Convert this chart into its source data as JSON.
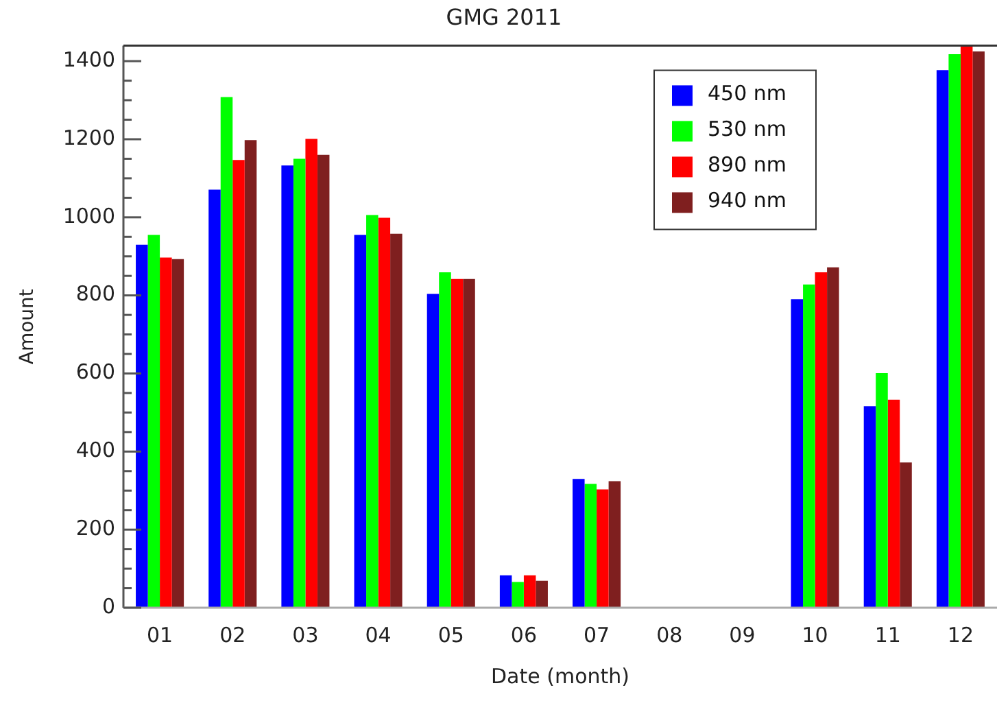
{
  "chart_data": {
    "type": "bar",
    "title": "GMG 2011",
    "xlabel": "Date (month)",
    "ylabel": "Amount",
    "categories": [
      "01",
      "02",
      "03",
      "04",
      "05",
      "06",
      "07",
      "08",
      "09",
      "10",
      "11",
      "12"
    ],
    "series": [
      {
        "name": "450 nm",
        "color": "#0000ff",
        "values": [
          930,
          1071,
          1133,
          955,
          804,
          83,
          330,
          0,
          0,
          790,
          516,
          1377
        ]
      },
      {
        "name": "530 nm",
        "color": "#00ff00",
        "values": [
          955,
          1308,
          1150,
          1006,
          859,
          66,
          317,
          0,
          0,
          828,
          601,
          1418
        ]
      },
      {
        "name": "890 nm",
        "color": "#ff0000",
        "values": [
          897,
          1147,
          1201,
          999,
          842,
          83,
          303,
          0,
          0,
          859,
          533,
          1440
        ]
      },
      {
        "name": "940 nm",
        "color": "#7f1f1f",
        "values": [
          893,
          1198,
          1160,
          958,
          842,
          69,
          324,
          0,
          0,
          872,
          372,
          1425
        ]
      }
    ],
    "ylim": [
      0,
      1440
    ],
    "yticks": [
      0,
      {
        "value": 50,
        "label": null
      },
      {
        "value": 100,
        "label": null
      },
      {
        "value": 150,
        "label": null
      },
      200,
      {
        "value": 250,
        "label": null
      },
      {
        "value": 300,
        "label": null
      },
      {
        "value": 350,
        "label": null
      },
      400,
      {
        "value": 450,
        "label": null
      },
      {
        "value": 500,
        "label": null
      },
      {
        "value": 550,
        "label": null
      },
      600,
      {
        "value": 650,
        "label": null
      },
      {
        "value": 700,
        "label": null
      },
      {
        "value": 750,
        "label": null
      },
      800,
      {
        "value": 850,
        "label": null
      },
      {
        "value": 900,
        "label": null
      },
      {
        "value": 950,
        "label": null
      },
      1000,
      {
        "value": 1050,
        "label": null
      },
      {
        "value": 1100,
        "label": null
      },
      {
        "value": 1150,
        "label": null
      },
      1200,
      {
        "value": 1250,
        "label": null
      },
      {
        "value": 1300,
        "label": null
      },
      {
        "value": 1350,
        "label": null
      },
      1400
    ],
    "grid": false,
    "legend": "top right"
  }
}
